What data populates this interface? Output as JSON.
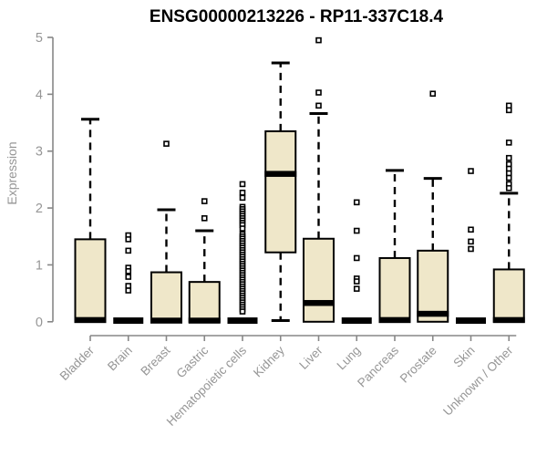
{
  "chart_data": {
    "type": "boxplot",
    "title": "ENSG00000213226 - RP11-337C18.4",
    "ylabel": "Expression",
    "xlabel": "",
    "ylim": [
      0,
      5
    ],
    "yticks": [
      0,
      1,
      2,
      3,
      4,
      5
    ],
    "grid": "off",
    "categories": [
      "Bladder",
      "Brain",
      "Breast",
      "Gastric",
      "Hematopoietic cells",
      "Kidney",
      "Liver",
      "Lung",
      "Pancreas",
      "Prostate",
      "Skin",
      "Unknown / Other"
    ],
    "series": [
      {
        "category": "Bladder",
        "low": 0,
        "q1": 0,
        "median": 0.03,
        "q3": 1.45,
        "high": 3.56,
        "outliers": []
      },
      {
        "category": "Brain",
        "low": 0,
        "q1": 0,
        "median": 0.02,
        "q3": 0,
        "high": 0,
        "outliers": [
          1.52,
          1.45,
          1.25,
          0.95,
          0.89,
          0.79,
          0.63,
          0.55
        ]
      },
      {
        "category": "Breast",
        "low": 0,
        "q1": 0,
        "median": 0.02,
        "q3": 0.87,
        "high": 1.97,
        "outliers": [
          3.13
        ]
      },
      {
        "category": "Gastric",
        "low": 0,
        "q1": 0,
        "median": 0.02,
        "q3": 0.7,
        "high": 1.6,
        "outliers": [
          2.12,
          1.82
        ]
      },
      {
        "category": "Hematopoietic cells",
        "low": 0,
        "q1": 0,
        "median": 0.02,
        "q3": 0,
        "high": 0,
        "outliers": [
          2.42,
          2.27,
          2.18,
          2.02,
          1.98,
          1.94,
          1.9,
          1.86,
          1.82,
          1.78,
          1.74,
          1.7,
          1.64,
          1.54,
          1.5,
          1.46,
          1.42,
          1.38,
          1.34,
          1.3,
          1.26,
          1.22,
          1.18,
          1.14,
          1.1,
          1.06,
          1.02,
          0.98,
          0.94,
          0.9,
          0.86,
          0.82,
          0.78,
          0.74,
          0.7,
          0.66,
          0.62,
          0.58,
          0.54,
          0.5,
          0.46,
          0.42,
          0.38,
          0.34,
          0.3,
          0.26,
          0.22,
          0.18
        ]
      },
      {
        "category": "Kidney",
        "low": 0.02,
        "q1": 1.22,
        "median": 2.6,
        "q3": 3.35,
        "high": 4.55,
        "outliers": []
      },
      {
        "category": "Liver",
        "low": 0,
        "q1": 0,
        "median": 0.33,
        "q3": 1.46,
        "high": 3.66,
        "outliers": [
          4.95,
          4.03,
          3.8
        ]
      },
      {
        "category": "Lung",
        "low": 0,
        "q1": 0,
        "median": 0.02,
        "q3": 0,
        "high": 0,
        "outliers": [
          2.1,
          1.6,
          1.12,
          0.76,
          0.71,
          0.58
        ]
      },
      {
        "category": "Pancreas",
        "low": 0,
        "q1": 0,
        "median": 0.03,
        "q3": 1.12,
        "high": 2.66,
        "outliers": []
      },
      {
        "category": "Prostate",
        "low": 0,
        "q1": 0,
        "median": 0.14,
        "q3": 1.25,
        "high": 2.52,
        "outliers": [
          4.01
        ]
      },
      {
        "category": "Skin",
        "low": 0,
        "q1": 0,
        "median": 0.02,
        "q3": 0,
        "high": 0,
        "outliers": [
          2.65,
          1.62,
          1.41,
          1.28
        ]
      },
      {
        "category": "Unknown / Other",
        "low": 0,
        "q1": 0,
        "median": 0.03,
        "q3": 0.92,
        "high": 2.26,
        "outliers": [
          3.8,
          3.72,
          3.15,
          2.88,
          2.77,
          2.69,
          2.61,
          2.53,
          2.42,
          2.35
        ]
      }
    ],
    "colors": {
      "box_fill": "#EFE7C9",
      "box_stroke": "#000000",
      "median": "#000000",
      "whisker": "#000000",
      "outlier_stroke": "#000000",
      "outlier_fill": "#ffffff",
      "axis": "#878787",
      "tick_label": "#969696",
      "title": "#000000",
      "background": "#ffffff"
    }
  }
}
